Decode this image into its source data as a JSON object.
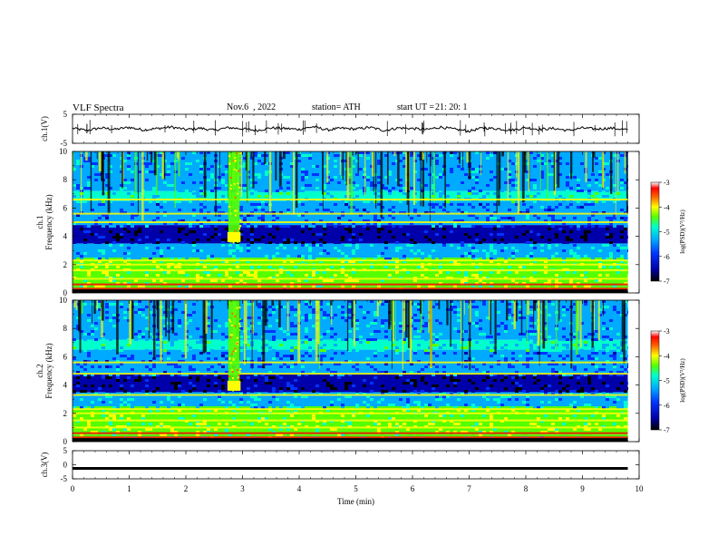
{
  "header": {
    "title": "VLF Spectra",
    "date": "Nov.6  , 2022",
    "station": "station= ATH",
    "start_ut_label": "start UT =",
    "start_ut_value": "21: 20: 1"
  },
  "chart_data": [
    {
      "type": "line",
      "title": "",
      "ylabel": "ch.1(V)",
      "xlabel": "",
      "xlim": [
        0,
        10
      ],
      "ylim": [
        -5,
        5
      ],
      "yticks": [
        "5",
        "-5"
      ],
      "series": [
        {
          "x": [
            0.0,
            0.25,
            0.5,
            0.75,
            1.0,
            1.25,
            1.5,
            1.75,
            2.0,
            2.25,
            2.5,
            2.75,
            3.0,
            3.25,
            3.5,
            3.75,
            4.0,
            4.25,
            4.5,
            4.75,
            5.0,
            5.25,
            5.5,
            5.75,
            6.0,
            6.25,
            6.5,
            6.75,
            7.0,
            7.25,
            7.5,
            7.75,
            8.0,
            8.25,
            8.5,
            8.75,
            9.0,
            9.25,
            9.5,
            9.8
          ],
          "y": [
            0.2,
            -0.6,
            0.3,
            -0.2,
            0.5,
            -0.4,
            0.1,
            0.6,
            -0.3,
            0.2,
            -0.5,
            0.4,
            0.0,
            -0.6,
            0.3,
            0.1,
            -0.2,
            0.7,
            -0.4,
            0.2,
            -0.1,
            0.5,
            -0.6,
            0.3,
            0.1,
            -0.3,
            0.6,
            -0.2,
            -0.8,
            0.3,
            0.0,
            -0.5,
            0.4,
            -0.2,
            0.1,
            -0.6,
            0.3,
            -0.1,
            0.2,
            -0.3
          ],
          "color": "#000000"
        }
      ]
    },
    {
      "type": "heatmap",
      "title": "",
      "ylabel": "ch.1\nFrequency (kHz)",
      "xlim": [
        0,
        9.8
      ],
      "ylim": [
        0,
        10
      ],
      "yticks": [
        "0",
        "2",
        "4",
        "6",
        "8",
        "10"
      ],
      "colorbar": {
        "label": "log(PSD)(V²/Hz)",
        "range": [
          -7,
          -3
        ],
        "ticks": [
          "-3",
          "-4",
          "-5",
          "-6",
          "-7"
        ]
      },
      "features": {
        "horizontal_lines_khz": [
          0.3,
          0.6,
          1.0,
          1.6,
          2.0,
          2.3,
          5.0,
          5.6,
          6.6
        ],
        "burst_x_min": [
          2.75,
          2.95
        ],
        "burst_y_khz": [
          3.6,
          10
        ]
      }
    },
    {
      "type": "heatmap",
      "title": "",
      "ylabel": "ch.2\nFrequency (kHz)",
      "xlim": [
        0,
        9.8
      ],
      "ylim": [
        0,
        10
      ],
      "yticks": [
        "0",
        "2",
        "4",
        "6",
        "8",
        "10"
      ],
      "colorbar": {
        "label": "log(PSD)(V²/Hz)",
        "range": [
          -7,
          -3
        ],
        "ticks": [
          "-3",
          "-4",
          "-5",
          "-6",
          "-7"
        ]
      },
      "features": {
        "horizontal_lines_khz": [
          0.3,
          0.6,
          1.0,
          1.5,
          2.0,
          2.3,
          3.3,
          4.8,
          5.6
        ],
        "burst_x_min": [
          2.75,
          2.95
        ],
        "burst_y_khz": [
          3.6,
          10
        ]
      }
    },
    {
      "type": "line",
      "title": "",
      "ylabel": "ch.3(V)",
      "xlabel": "Time (min)",
      "xlim": [
        0,
        10
      ],
      "ylim": [
        -5,
        5
      ],
      "yticks": [
        "5",
        "0",
        "-5"
      ],
      "xticks": [
        "0",
        "1",
        "2",
        "3",
        "4",
        "5",
        "6",
        "7",
        "8",
        "9",
        "10"
      ],
      "series": [
        {
          "x": [
            0.0,
            9.8
          ],
          "y": [
            -1.3,
            -1.3
          ],
          "color": "#000000"
        }
      ]
    }
  ],
  "colors": {
    "frame": "#000000",
    "colormap": [
      "#000000",
      "#0000aa",
      "#0033ff",
      "#00aaff",
      "#00ffcc",
      "#55ff00",
      "#ffff00",
      "#ff6600",
      "#ff0000",
      "#ffffff"
    ]
  }
}
